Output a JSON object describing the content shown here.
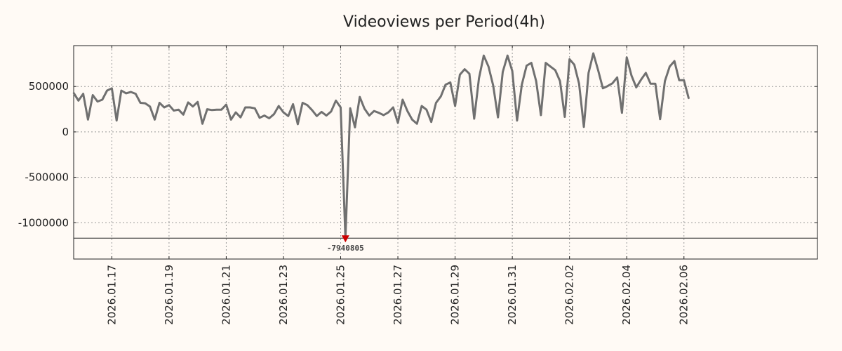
{
  "chart_data": {
    "type": "line",
    "title": "Videoviews per Period(4h)",
    "xlabel": "",
    "ylabel": "",
    "grid": true,
    "x_range": [
      0,
      156
    ],
    "ylim": [
      -1400000,
      950000
    ],
    "yticks": [
      {
        "value": 500000,
        "label": "500000"
      },
      {
        "value": 0,
        "label": "0"
      },
      {
        "value": -500000,
        "label": "-500000"
      },
      {
        "value": -1000000,
        "label": "-1000000"
      }
    ],
    "xticks": [
      {
        "index": 8,
        "label": "2026.01.17"
      },
      {
        "index": 20,
        "label": "2026.01.19"
      },
      {
        "index": 32,
        "label": "2026.01.21"
      },
      {
        "index": 44,
        "label": "2026.01.23"
      },
      {
        "index": 56,
        "label": "2026.01.25"
      },
      {
        "index": 68,
        "label": "2026.01.27"
      },
      {
        "index": 80,
        "label": "2026.01.29"
      },
      {
        "index": 92,
        "label": "2026.01.31"
      },
      {
        "index": 104,
        "label": "2026.02.02"
      },
      {
        "index": 116,
        "label": "2026.02.04"
      },
      {
        "index": 128,
        "label": "2026.02.06"
      }
    ],
    "clip_line_value": -1170000,
    "series": [
      {
        "name": "Videoviews",
        "color": "#707070",
        "values": [
          430000,
          345000,
          420000,
          135000,
          405000,
          335000,
          355000,
          455000,
          480000,
          125000,
          455000,
          425000,
          440000,
          420000,
          320000,
          315000,
          280000,
          135000,
          320000,
          270000,
          295000,
          235000,
          245000,
          190000,
          325000,
          280000,
          330000,
          90000,
          250000,
          240000,
          245000,
          245000,
          300000,
          135000,
          215000,
          160000,
          270000,
          270000,
          260000,
          155000,
          180000,
          150000,
          195000,
          285000,
          215000,
          175000,
          305000,
          85000,
          320000,
          295000,
          240000,
          175000,
          220000,
          180000,
          225000,
          345000,
          270000,
          -1170000,
          260000,
          50000,
          385000,
          255000,
          180000,
          230000,
          210000,
          185000,
          215000,
          270000,
          100000,
          355000,
          230000,
          135000,
          90000,
          285000,
          245000,
          110000,
          320000,
          390000,
          520000,
          545000,
          285000,
          630000,
          690000,
          640000,
          145000,
          590000,
          840000,
          720000,
          510000,
          160000,
          660000,
          840000,
          670000,
          125000,
          520000,
          730000,
          760000,
          560000,
          185000,
          760000,
          720000,
          680000,
          560000,
          165000,
          800000,
          740000,
          530000,
          55000,
          650000,
          865000,
          680000,
          480000,
          505000,
          535000,
          600000,
          210000,
          820000,
          620000,
          490000,
          575000,
          650000,
          530000,
          530000,
          140000,
          560000,
          720000,
          780000,
          570000,
          570000,
          370000
        ]
      }
    ],
    "min_marker": {
      "index": 57,
      "label": "-7940805",
      "color": "#cc0000"
    }
  }
}
